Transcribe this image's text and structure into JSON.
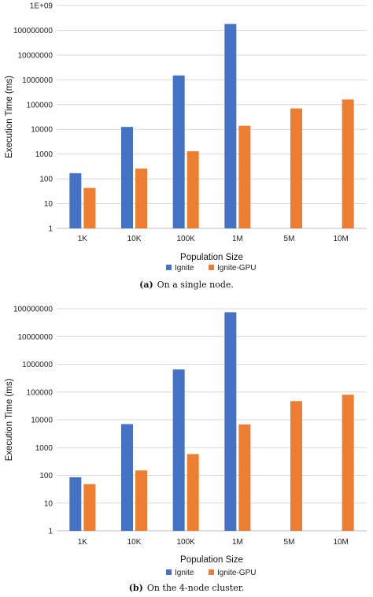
{
  "chart_data": [
    {
      "type": "bar",
      "yscale": "log",
      "ylim": [
        1,
        1000000000
      ],
      "yticks": [
        "1",
        "10",
        "100",
        "1000",
        "10000",
        "100000",
        "1000000",
        "10000000",
        "100000000",
        "1E+09"
      ],
      "ytick_values": [
        1,
        10,
        100,
        1000,
        10000,
        100000,
        1000000,
        10000000,
        100000000,
        1000000000
      ],
      "categories": [
        "1K",
        "10K",
        "100K",
        "1M",
        "5M",
        "10M"
      ],
      "series": [
        {
          "name": "Ignite",
          "color": "#4472c4",
          "values": [
            170,
            12500,
            1500000,
            180000000,
            null,
            null
          ]
        },
        {
          "name": "Ignite-GPU",
          "color": "#ed7d31",
          "values": [
            43,
            260,
            1300,
            14000,
            70000,
            160000
          ]
        }
      ],
      "xlabel": "Population Size",
      "ylabel": "Execution Time (ms)",
      "legend": "bottom",
      "caption_label": "(a)",
      "caption_text": "On a single node."
    },
    {
      "type": "bar",
      "yscale": "log",
      "ylim": [
        1,
        100000000
      ],
      "yticks": [
        "1",
        "10",
        "100",
        "1000",
        "10000",
        "100000",
        "1000000",
        "10000000",
        "100000000"
      ],
      "ytick_values": [
        1,
        10,
        100,
        1000,
        10000,
        100000,
        1000000,
        10000000,
        100000000
      ],
      "categories": [
        "1K",
        "10K",
        "100K",
        "1M",
        "5M",
        "10M"
      ],
      "series": [
        {
          "name": "Ignite",
          "color": "#4472c4",
          "values": [
            85,
            7000,
            650000,
            75000000,
            null,
            null
          ]
        },
        {
          "name": "Ignite-GPU",
          "color": "#ed7d31",
          "values": [
            48,
            150,
            580,
            6800,
            47000,
            80000
          ]
        }
      ],
      "xlabel": "Population Size",
      "ylabel": "Execution Time (ms)",
      "legend": "bottom",
      "caption_label": "(b)",
      "caption_text": "On the 4-node cluster."
    }
  ]
}
